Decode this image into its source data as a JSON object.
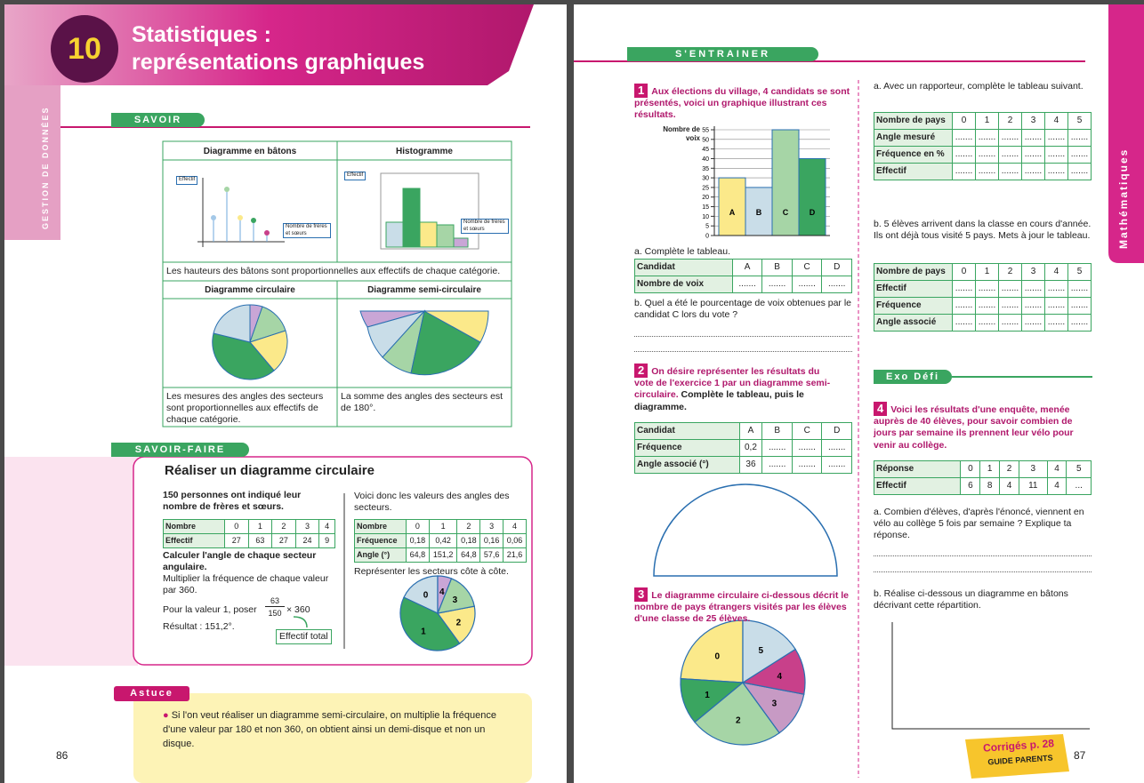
{
  "left_page": {
    "chapter_number": "10",
    "title_line1": "Statistiques :",
    "title_line2": "représentations graphiques",
    "side_label": "GESTION DE DONNÉES",
    "page_number": "86",
    "savoir": {
      "tag": "SAVOIR",
      "bar_diagram_title": "Diagramme en bâtons",
      "histogram_title": "Histogramme",
      "axis_y": "Effectif",
      "axis_x": "Nombre de frères et sœurs",
      "bar_caption": "Les hauteurs des bâtons sont proportionnelles aux effectifs de chaque catégorie.",
      "pie_title": "Diagramme circulaire",
      "semi_title": "Diagramme semi-circulaire",
      "pie_caption": "Les mesures des angles des secteurs sont proportionnelles aux effectifs de chaque catégorie.",
      "semi_caption": "La somme des angles des secteurs est de 180°."
    },
    "savoir_faire": {
      "tag": "SAVOIR-FAIRE",
      "title": "Réaliser un diagramme circulaire",
      "intro": "150 personnes ont indiqué leur nombre de frères et sœurs.",
      "table1": {
        "rows": [
          [
            "Nombre",
            0,
            1,
            2,
            3,
            4
          ],
          [
            "Effectif",
            27,
            63,
            27,
            24,
            9
          ]
        ]
      },
      "step1": "Calculer l'angle de chaque secteur angulaire.",
      "step2": "Multiplier la fréquence de chaque valeur par 360.",
      "formula_prefix": "Pour la valeur 1, poser",
      "numerator": "63",
      "denominator": "150",
      "multiplier": "× 360",
      "result": "Résultat : 151,2°.",
      "callout": "Effectif total",
      "intro2": "Voici donc les valeurs des angles des secteurs.",
      "table2": {
        "rows": [
          [
            "Nombre",
            0,
            1,
            2,
            3,
            4
          ],
          [
            "Fréquence",
            "0,18",
            "0,42",
            "0,18",
            "0,16",
            "0,06"
          ],
          [
            "Angle (°)",
            "64,8",
            "151,2",
            "64,8",
            "57,6",
            "21,6"
          ]
        ]
      },
      "instruction": "Représenter les secteurs côte à côte.",
      "pie_colors": [
        "#c9dde8",
        "#3aa560",
        "#fbe98a",
        "#a6d5a6",
        "#c9a6d6"
      ]
    },
    "astuce": {
      "tag": "Astuce",
      "text": "Si l'on veut réaliser un diagramme semi-circulaire, on multiplie la fréquence d'une valeur par 180 et non 360, on obtient ainsi un demi-disque et non un disque."
    }
  },
  "right_page": {
    "header": "S'ENTRAINER",
    "side_label": "Mathématiques",
    "page_number": "87",
    "exercise1": {
      "number": "1",
      "text": "Aux élections du village, 4 candidats se sont présentés, voici un graphique illustrant ces résultats.",
      "chart": {
        "type": "bar",
        "y_label": "Nombre de voix",
        "categories": [
          "A",
          "B",
          "C",
          "D"
        ],
        "values": [
          30,
          25,
          55,
          40
        ],
        "colors": [
          "#fbe98a",
          "#c9dde8",
          "#a6d5a6",
          "#3aa560"
        ],
        "ylim": [
          0,
          55
        ],
        "yticks": [
          0,
          5,
          10,
          15,
          20,
          25,
          30,
          35,
          40,
          45,
          50,
          55
        ],
        "grid": true
      },
      "question_a": "a. Complète le tableau.",
      "table": {
        "rows": [
          [
            "Candidat",
            "A",
            "B",
            "C",
            "D"
          ],
          [
            "Nombre de voix",
            ".......",
            ".......",
            ".......",
            "......."
          ]
        ]
      },
      "question_b": "b. Quel a été le pourcentage de voix obtenues par le candidat C lors du vote ?"
    },
    "exercise2": {
      "number": "2",
      "text": "On désire représenter les résultats du vote de l'exercice 1 par un diagramme semi-circulaire.",
      "instruction": "Complète le tableau, puis le diagramme.",
      "table": {
        "rows": [
          [
            "Candidat",
            "A",
            "B",
            "C",
            "D"
          ],
          [
            "Fréquence",
            "0,2",
            ".......",
            ".......",
            "......."
          ],
          [
            "Angle associé (°)",
            36,
            ".......",
            ".......",
            "......."
          ]
        ]
      }
    },
    "exercise3": {
      "number": "3",
      "text": "Le diagramme circulaire ci-dessous décrit le nombre de pays étrangers visités par les élèves d'une classe de 25 élèves.",
      "chart": {
        "type": "pie",
        "categories": [
          "0",
          "1",
          "2",
          "3",
          "4",
          "5"
        ],
        "values": [
          6,
          3,
          6,
          3,
          3,
          4
        ],
        "colors": [
          "#fbe98a",
          "#3aa560",
          "#a6d5a6",
          "#c79ac4",
          "#c8408a",
          "#c9dde8"
        ]
      },
      "question_a": "a. Avec un rapporteur, complète le tableau suivant.",
      "table_a": {
        "rows": [
          [
            "Nombre de pays",
            0,
            1,
            2,
            3,
            4,
            5
          ],
          [
            "Angle mesuré",
            ".......",
            ".......",
            ".......",
            ".......",
            ".......",
            "......."
          ],
          [
            "Fréquence en %",
            ".......",
            ".......",
            ".......",
            ".......",
            ".......",
            "......."
          ],
          [
            "Effectif",
            ".......",
            ".......",
            ".......",
            ".......",
            ".......",
            "......."
          ]
        ]
      },
      "question_b": "b. 5 élèves arrivent dans la classe en cours d'année. Ils ont déjà tous visité 5 pays. Mets à jour le tableau.",
      "table_b": {
        "rows": [
          [
            "Nombre de pays",
            0,
            1,
            2,
            3,
            4,
            5
          ],
          [
            "Effectif",
            ".......",
            ".......",
            ".......",
            ".......",
            ".......",
            "......."
          ],
          [
            "Fréquence",
            ".......",
            ".......",
            ".......",
            ".......",
            ".......",
            "......."
          ],
          [
            "Angle associé",
            ".......",
            ".......",
            ".......",
            ".......",
            ".......",
            "......."
          ]
        ]
      }
    },
    "exo_defi": "Exo Défi",
    "exercise4": {
      "number": "4",
      "text": "Voici les résultats d'une enquête, menée auprès de 40 élèves, pour savoir combien de jours par semaine ils prennent leur vélo pour venir au collège.",
      "table": {
        "rows": [
          [
            "Réponse",
            0,
            1,
            2,
            3,
            4,
            5
          ],
          [
            "Effectif",
            6,
            8,
            4,
            11,
            4,
            "..."
          ]
        ]
      },
      "question_a": "a. Combien d'élèves, d'après l'énoncé, viennent en vélo au collège 5 fois par semaine ? Explique ta réponse.",
      "question_b": "b. Réalise ci-dessous un diagramme en bâtons décrivant cette répartition."
    },
    "sticker_title": "Corrigés p. 28",
    "sticker_subtitle": "GUIDE PARENTS"
  }
}
